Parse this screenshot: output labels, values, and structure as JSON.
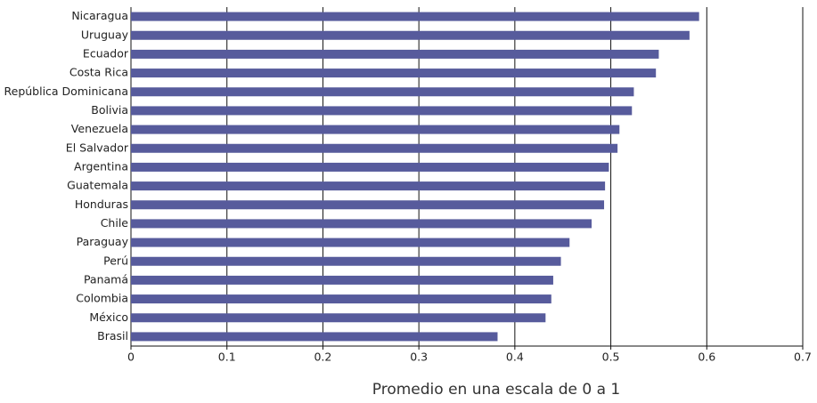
{
  "chart_data": {
    "type": "hbar",
    "categories": [
      "Nicaragua",
      "Uruguay",
      "Ecuador",
      "Costa Rica",
      "República Dominicana",
      "Bolivia",
      "Venezuela",
      "El Salvador",
      "Argentina",
      "Guatemala",
      "Honduras",
      "Chile",
      "Paraguay",
      "Perú",
      "Panamá",
      "Colombia",
      "México",
      "Brasil"
    ],
    "values": [
      0.592,
      0.582,
      0.55,
      0.547,
      0.524,
      0.522,
      0.509,
      0.507,
      0.498,
      0.494,
      0.493,
      0.48,
      0.457,
      0.448,
      0.44,
      0.438,
      0.432,
      0.382
    ],
    "color": "#575b9c",
    "xlim": [
      0,
      0.7
    ],
    "xticks": [
      0,
      0.1,
      0.2,
      0.3,
      0.4,
      0.5,
      0.6,
      0.7
    ],
    "grid": true,
    "x_label": "Promedio en una escala de 0 a 1"
  }
}
